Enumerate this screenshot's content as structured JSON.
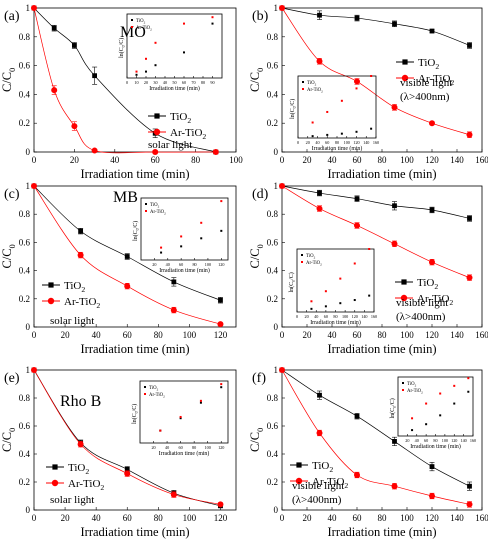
{
  "chart_data": [
    {
      "id": "a",
      "type": "line",
      "panel_label": "(a)",
      "title": "MO",
      "xlabel": "Irradiation time (min)",
      "ylabel": "C/C",
      "xlim": [
        0,
        100
      ],
      "ylim": [
        0,
        1.0
      ],
      "xticks": [
        0,
        20,
        40,
        60,
        80,
        100
      ],
      "yticks": [
        0.0,
        0.2,
        0.4,
        0.6,
        0.8,
        1.0
      ],
      "x": [
        0,
        10,
        20,
        30,
        60,
        90
      ],
      "series": [
        {
          "name": "TiO2",
          "color": "#000000",
          "marker": "square",
          "values": [
            1.0,
            0.86,
            0.74,
            0.53,
            0.13,
            0.0
          ],
          "errors": [
            0,
            0.02,
            0.02,
            0.06,
            0.03,
            0.01
          ]
        },
        {
          "name": "Ar-TiO2",
          "color": "#ff0000",
          "marker": "circle",
          "values": [
            1.0,
            0.43,
            0.18,
            0.01,
            0.0,
            0.0
          ],
          "errors": [
            0,
            0.03,
            0.03,
            0.01,
            0.01,
            0.01
          ]
        }
      ],
      "condition": "solar light",
      "inset": {
        "xlabel": "Irradiation time (min)",
        "ylabel": "ln(C/C)",
        "xlim": [
          0,
          100
        ],
        "xticks": [
          0,
          10,
          20,
          30,
          40,
          50,
          60,
          70,
          80,
          90
        ],
        "ylim": [
          0,
          1
        ],
        "series": [
          {
            "name": "TiO2",
            "color": "#000000",
            "x": [
              10,
              20,
              30,
              60,
              90
            ],
            "y": [
              0.05,
              0.1,
              0.2,
              0.4,
              0.85
            ]
          },
          {
            "name": "Ar-TiO2",
            "color": "#ff0000",
            "x": [
              10,
              20,
              30,
              60,
              90
            ],
            "y": [
              0.1,
              0.3,
              0.55,
              0.85,
              0.95
            ]
          }
        ]
      }
    },
    {
      "id": "b",
      "type": "line",
      "panel_label": "(b)",
      "title": "",
      "xlabel": "Irradiation time (min)",
      "ylabel": "C/C",
      "xlim": [
        0,
        160
      ],
      "ylim": [
        0,
        1.0
      ],
      "xticks": [
        0,
        20,
        40,
        60,
        80,
        100,
        120,
        140,
        160
      ],
      "yticks": [
        0.0,
        0.2,
        0.4,
        0.6,
        0.8,
        1.0
      ],
      "x": [
        0,
        30,
        60,
        90,
        120,
        150
      ],
      "series": [
        {
          "name": "TiO2",
          "color": "#000000",
          "marker": "square",
          "values": [
            1.0,
            0.95,
            0.93,
            0.89,
            0.84,
            0.74
          ],
          "errors": [
            0,
            0.03,
            0.02,
            0.02,
            0.01,
            0.02
          ]
        },
        {
          "name": "Ar-TiO2",
          "color": "#ff0000",
          "marker": "circle",
          "values": [
            1.0,
            0.63,
            0.49,
            0.31,
            0.2,
            0.12
          ],
          "errors": [
            0,
            0.02,
            0.02,
            0.02,
            0.01,
            0.02
          ]
        }
      ],
      "condition": "visible light",
      "condition2": "(λ>400nm)",
      "inset": {
        "xlabel": "Irradiation time (min)",
        "ylabel": "ln(C/C)",
        "xlim": [
          0,
          160
        ],
        "xticks": [
          0,
          20,
          40,
          60,
          80,
          100,
          120,
          140,
          160
        ],
        "ylim": [
          0,
          1
        ],
        "series": [
          {
            "name": "TiO2",
            "color": "#000000",
            "x": [
              30,
              60,
              90,
              120,
              150
            ],
            "y": [
              0.03,
              0.05,
              0.07,
              0.1,
              0.15
            ]
          },
          {
            "name": "Ar-TiO2",
            "color": "#ff0000",
            "x": [
              30,
              60,
              90,
              120,
              150
            ],
            "y": [
              0.25,
              0.42,
              0.6,
              0.8,
              1.0
            ]
          }
        ]
      }
    },
    {
      "id": "c",
      "type": "line",
      "panel_label": "(c)",
      "title": "MB",
      "xlabel": "Irradiation time (min)",
      "ylabel": "C/C",
      "xlim": [
        0,
        130
      ],
      "ylim": [
        0,
        1.0
      ],
      "xticks": [
        0,
        20,
        40,
        60,
        80,
        100,
        120
      ],
      "yticks": [
        0.0,
        0.2,
        0.4,
        0.6,
        0.8,
        1.0
      ],
      "x": [
        0,
        30,
        60,
        90,
        120
      ],
      "series": [
        {
          "name": "TiO2",
          "color": "#000000",
          "marker": "square",
          "values": [
            1.0,
            0.68,
            0.5,
            0.32,
            0.19
          ],
          "errors": [
            0,
            0.02,
            0.02,
            0.03,
            0.02
          ]
        },
        {
          "name": "Ar-TiO2",
          "color": "#ff0000",
          "marker": "circle",
          "values": [
            1.0,
            0.51,
            0.29,
            0.12,
            0.02
          ],
          "errors": [
            0,
            0.02,
            0.02,
            0.02,
            0.01
          ]
        }
      ],
      "condition": "solar light",
      "inset": {
        "xlabel": "Irradiation time (min)",
        "ylabel": "ln(C/C)",
        "xlim": [
          0,
          130
        ],
        "xticks": [
          20,
          40,
          60,
          80,
          100,
          120
        ],
        "ylim": [
          0,
          1
        ],
        "series": [
          {
            "name": "TiO2",
            "color": "#000000",
            "x": [
              30,
              60,
              90,
              120
            ],
            "y": [
              0.12,
              0.22,
              0.35,
              0.47
            ]
          },
          {
            "name": "Ar-TiO2",
            "color": "#ff0000",
            "x": [
              30,
              60,
              90,
              120
            ],
            "y": [
              0.2,
              0.38,
              0.6,
              0.95
            ]
          }
        ]
      }
    },
    {
      "id": "d",
      "type": "line",
      "panel_label": "(d)",
      "title": "",
      "xlabel": "Irradiation time (min)",
      "ylabel": "C/C",
      "xlim": [
        0,
        160
      ],
      "ylim": [
        0,
        1.0
      ],
      "xticks": [
        0,
        20,
        40,
        60,
        80,
        100,
        120,
        140,
        160
      ],
      "yticks": [
        0.0,
        0.2,
        0.4,
        0.6,
        0.8,
        1.0
      ],
      "x": [
        0,
        30,
        60,
        90,
        120,
        150
      ],
      "series": [
        {
          "name": "TiO2",
          "color": "#000000",
          "marker": "square",
          "values": [
            1.0,
            0.95,
            0.91,
            0.86,
            0.83,
            0.77
          ],
          "errors": [
            0,
            0.02,
            0.02,
            0.03,
            0.02,
            0.02
          ]
        },
        {
          "name": "Ar-TiO2",
          "color": "#ff0000",
          "marker": "circle",
          "values": [
            1.0,
            0.84,
            0.72,
            0.59,
            0.46,
            0.35
          ],
          "errors": [
            0,
            0.02,
            0.02,
            0.02,
            0.02,
            0.02
          ]
        }
      ],
      "condition": "visible light",
      "condition2": "(λ>400nm)",
      "inset": {
        "xlabel": "Irradiation time (min)",
        "ylabel": "ln(C/C)",
        "xlim": [
          0,
          160
        ],
        "xticks": [
          0,
          20,
          40,
          60,
          80,
          100,
          120,
          140,
          160
        ],
        "ylim": [
          0,
          1
        ],
        "series": [
          {
            "name": "TiO2",
            "color": "#000000",
            "x": [
              30,
              60,
              90,
              120,
              150
            ],
            "y": [
              0.05,
              0.09,
              0.14,
              0.19,
              0.26
            ]
          },
          {
            "name": "Ar-TiO2",
            "color": "#ff0000",
            "x": [
              30,
              60,
              90,
              120,
              150
            ],
            "y": [
              0.17,
              0.33,
              0.53,
              0.77,
              1.0
            ]
          }
        ]
      }
    },
    {
      "id": "e",
      "type": "line",
      "panel_label": "(e)",
      "title": "Rho B",
      "xlabel": "Irradiation time (min)",
      "ylabel": "C/C",
      "xlim": [
        0,
        130
      ],
      "ylim": [
        0,
        1.0
      ],
      "xticks": [
        0,
        20,
        40,
        60,
        80,
        100,
        120
      ],
      "yticks": [
        0.0,
        0.2,
        0.4,
        0.6,
        0.8,
        1.0
      ],
      "x": [
        0,
        30,
        60,
        90,
        120
      ],
      "series": [
        {
          "name": "TiO2",
          "color": "#000000",
          "marker": "square",
          "values": [
            1.0,
            0.48,
            0.29,
            0.12,
            0.03
          ],
          "errors": [
            0,
            0.02,
            0.02,
            0.02,
            0.01
          ]
        },
        {
          "name": "Ar-TiO2",
          "color": "#ff0000",
          "marker": "circle",
          "values": [
            1.0,
            0.47,
            0.26,
            0.11,
            0.04
          ],
          "errors": [
            0,
            0.02,
            0.02,
            0.02,
            0.01
          ]
        }
      ],
      "condition": "solar light",
      "inset": {
        "xlabel": "Irradiation time (min)",
        "ylabel": "ln(C/C)",
        "xlim": [
          0,
          130
        ],
        "xticks": [
          20,
          40,
          60,
          80,
          100,
          120
        ],
        "ylim": [
          0,
          1
        ],
        "series": [
          {
            "name": "TiO2",
            "color": "#000000",
            "x": [
              30,
              60,
              90,
              120
            ],
            "y": [
              0.2,
              0.4,
              0.65,
              0.9
            ]
          },
          {
            "name": "Ar-TiO2",
            "color": "#ff0000",
            "x": [
              30,
              60,
              90,
              120
            ],
            "y": [
              0.2,
              0.42,
              0.68,
              0.95
            ]
          }
        ]
      }
    },
    {
      "id": "f",
      "type": "line",
      "panel_label": "(f)",
      "title": "",
      "xlabel": "Irradiation time (min)",
      "ylabel": "C/C",
      "xlim": [
        0,
        160
      ],
      "ylim": [
        0,
        1.0
      ],
      "xticks": [
        0,
        20,
        40,
        60,
        80,
        100,
        120,
        140,
        160
      ],
      "yticks": [
        0.0,
        0.2,
        0.4,
        0.6,
        0.8,
        1.0
      ],
      "x": [
        0,
        30,
        60,
        90,
        120,
        150
      ],
      "series": [
        {
          "name": "TiO2",
          "color": "#000000",
          "marker": "square",
          "values": [
            1.0,
            0.82,
            0.67,
            0.49,
            0.31,
            0.17
          ],
          "errors": [
            0,
            0.03,
            0.02,
            0.03,
            0.03,
            0.03
          ]
        },
        {
          "name": "Ar-TiO2",
          "color": "#ff0000",
          "marker": "circle",
          "values": [
            1.0,
            0.55,
            0.25,
            0.17,
            0.1,
            0.04
          ],
          "errors": [
            0,
            0.02,
            0.02,
            0.02,
            0.02,
            0.02
          ]
        }
      ],
      "condition": "visible light",
      "condition2": "(λ>400nm)",
      "inset": {
        "xlabel": "Irradiation time (min)",
        "ylabel": "ln(C/C)",
        "xlim": [
          0,
          160
        ],
        "xticks": [
          20,
          40,
          60,
          80,
          100,
          120,
          140,
          160
        ],
        "ylim": [
          0,
          1
        ],
        "series": [
          {
            "name": "TiO2",
            "color": "#000000",
            "x": [
              30,
              60,
              90,
              120,
              150
            ],
            "y": [
              0.1,
              0.2,
              0.35,
              0.55,
              0.75
            ]
          },
          {
            "name": "Ar-TiO2",
            "color": "#ff0000",
            "x": [
              30,
              60,
              90,
              120,
              150
            ],
            "y": [
              0.3,
              0.55,
              0.72,
              0.85,
              0.98
            ]
          }
        ]
      }
    }
  ]
}
